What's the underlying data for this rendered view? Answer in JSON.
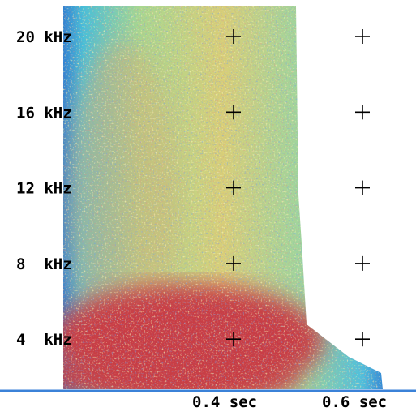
{
  "frequency_labels": [
    "20 kHz",
    "16 kHz",
    "12 kHz",
    "8  kHz",
    "4  kHz"
  ],
  "time_labels": [
    "0.4 sec",
    "0.6 sec"
  ]
}
